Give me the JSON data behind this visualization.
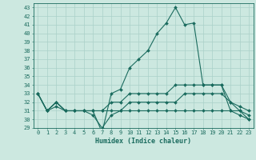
{
  "bg_color": "#cce8e0",
  "grid_color": "#aad0c8",
  "line_color": "#1a6b5e",
  "xlabel": "Humidex (Indice chaleur)",
  "x_values": [
    0,
    1,
    2,
    3,
    4,
    5,
    6,
    7,
    8,
    9,
    10,
    11,
    12,
    13,
    14,
    15,
    16,
    17,
    18,
    19,
    20,
    21,
    22,
    23
  ],
  "series": {
    "max": [
      33,
      31,
      32,
      31,
      31,
      31,
      31,
      28.5,
      33,
      33.5,
      36,
      37,
      38,
      40,
      41.2,
      43,
      41,
      41.2,
      34,
      34,
      34,
      31,
      31,
      30
    ],
    "upper_mid": [
      33,
      31,
      32,
      31,
      31,
      31,
      31,
      31,
      32,
      32,
      33,
      33,
      33,
      33,
      33,
      34,
      34,
      34,
      34,
      34,
      34,
      32,
      31.5,
      31
    ],
    "lower_mid": [
      33,
      31,
      32,
      31,
      31,
      31,
      31,
      31,
      31,
      31,
      32,
      32,
      32,
      32,
      32,
      32,
      33,
      33,
      33,
      33,
      33,
      32,
      31,
      30.5
    ],
    "min": [
      33,
      31,
      31.5,
      31,
      31,
      31,
      30.5,
      29,
      30.5,
      31,
      31,
      31,
      31,
      31,
      31,
      31,
      31,
      31,
      31,
      31,
      31,
      31,
      30.5,
      30
    ]
  },
  "ylim": [
    29,
    43.5
  ],
  "xlim": [
    -0.5,
    23.5
  ],
  "yticks": [
    29,
    30,
    31,
    32,
    33,
    34,
    35,
    36,
    37,
    38,
    39,
    40,
    41,
    42,
    43
  ],
  "xticks": [
    0,
    1,
    2,
    3,
    4,
    5,
    6,
    7,
    8,
    9,
    10,
    11,
    12,
    13,
    14,
    15,
    16,
    17,
    18,
    19,
    20,
    21,
    22,
    23
  ],
  "xlabel_fontsize": 6.0,
  "tick_fontsize": 5.0,
  "linewidth": 0.8,
  "markersize": 2.0
}
